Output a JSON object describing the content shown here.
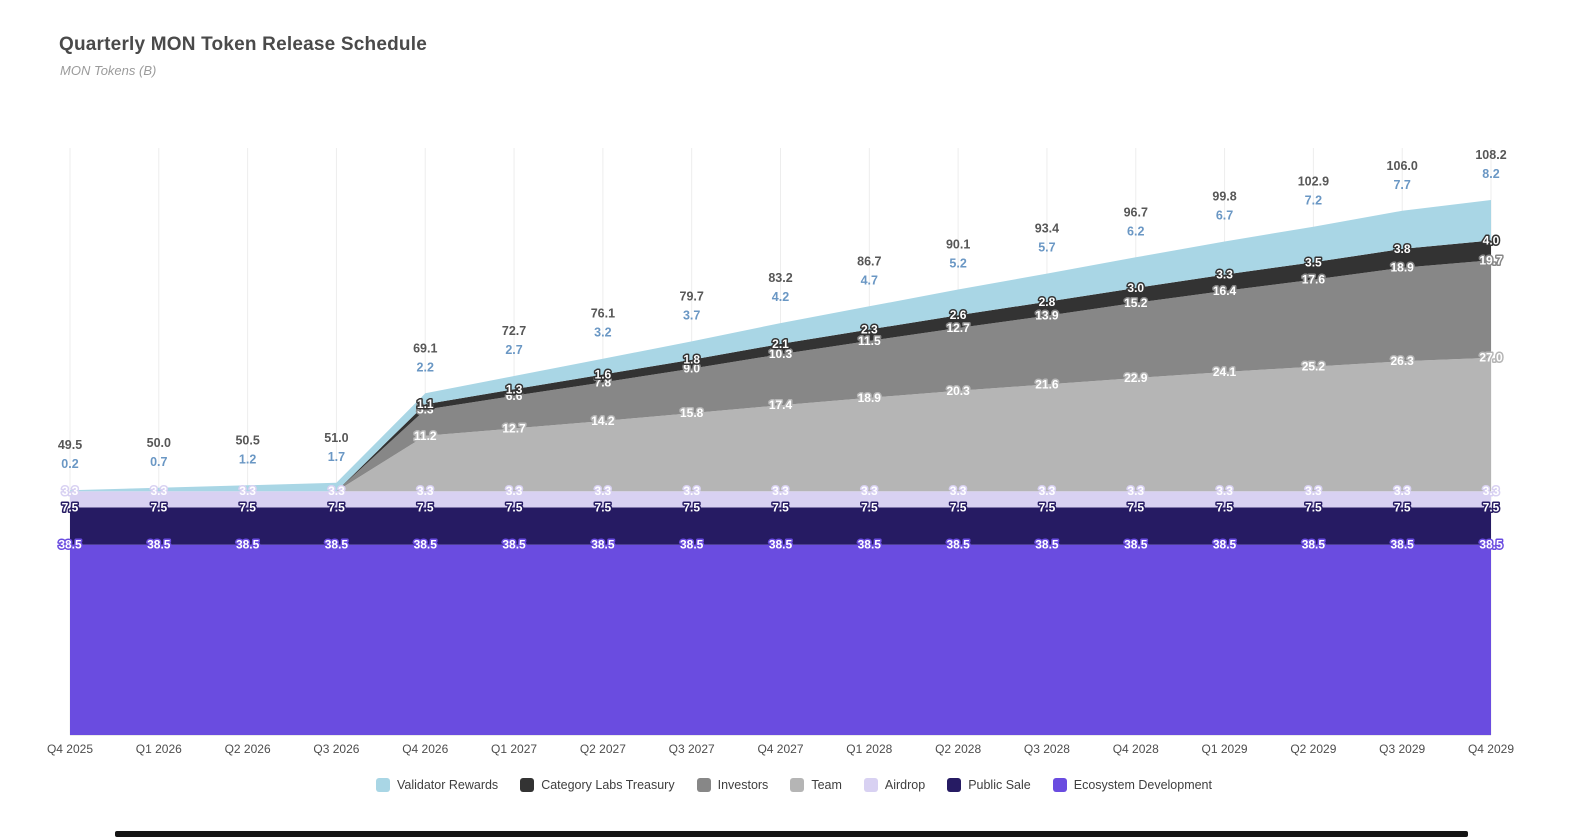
{
  "header": {
    "title": "Quarterly MON Token Release Schedule",
    "subtitle": "MON Tokens (B)"
  },
  "chart_data": {
    "type": "area",
    "stacked": true,
    "grid": true,
    "legend_position": "bottom",
    "ylim": [
      0,
      118
    ],
    "xlabel": "",
    "ylabel": "MON Tokens (B)",
    "categories": [
      "Q4 2025",
      "Q1 2026",
      "Q2 2026",
      "Q3 2026",
      "Q4 2026",
      "Q1 2027",
      "Q2 2027",
      "Q3 2027",
      "Q4 2027",
      "Q1 2028",
      "Q2 2028",
      "Q3 2028",
      "Q4 2028",
      "Q1 2029",
      "Q2 2029",
      "Q3 2029",
      "Q4 2029"
    ],
    "series": [
      {
        "name": "Ecosystem Development",
        "color": "#6a4ce0",
        "values": [
          38.5,
          38.5,
          38.5,
          38.5,
          38.5,
          38.5,
          38.5,
          38.5,
          38.5,
          38.5,
          38.5,
          38.5,
          38.5,
          38.5,
          38.5,
          38.5,
          38.5
        ]
      },
      {
        "name": "Public Sale",
        "color": "#261b63",
        "values": [
          7.5,
          7.5,
          7.5,
          7.5,
          7.5,
          7.5,
          7.5,
          7.5,
          7.5,
          7.5,
          7.5,
          7.5,
          7.5,
          7.5,
          7.5,
          7.5,
          7.5
        ]
      },
      {
        "name": "Airdrop",
        "color": "#d8d1f2",
        "values": [
          3.3,
          3.3,
          3.3,
          3.3,
          3.3,
          3.3,
          3.3,
          3.3,
          3.3,
          3.3,
          3.3,
          3.3,
          3.3,
          3.3,
          3.3,
          3.3,
          3.3
        ]
      },
      {
        "name": "Team",
        "color": "#b5b5b5",
        "values": [
          0,
          0,
          0,
          0,
          11.2,
          12.7,
          14.2,
          15.8,
          17.4,
          18.9,
          20.3,
          21.6,
          22.9,
          24.1,
          25.2,
          26.3,
          27.0
        ]
      },
      {
        "name": "Investors",
        "color": "#878787",
        "values": [
          0,
          0,
          0,
          0,
          5.3,
          6.6,
          7.8,
          9.0,
          10.3,
          11.5,
          12.7,
          13.9,
          15.2,
          16.4,
          17.6,
          18.9,
          19.7
        ]
      },
      {
        "name": "Category Labs Treasury",
        "color": "#333333",
        "values": [
          0,
          0,
          0,
          0,
          1.1,
          1.3,
          1.6,
          1.8,
          2.1,
          2.3,
          2.6,
          2.8,
          3.0,
          3.3,
          3.5,
          3.8,
          4.0
        ]
      },
      {
        "name": "Validator Rewards",
        "color": "#a9d6e5",
        "values": [
          0.2,
          0.7,
          1.2,
          1.7,
          2.2,
          2.7,
          3.2,
          3.7,
          4.2,
          4.7,
          5.2,
          5.7,
          6.2,
          6.7,
          7.2,
          7.7,
          8.2
        ]
      }
    ],
    "totals": [
      49.5,
      50.0,
      50.5,
      51.0,
      69.1,
      72.7,
      76.1,
      79.7,
      83.2,
      86.7,
      90.1,
      93.4,
      96.7,
      99.8,
      102.9,
      106.0,
      108.2
    ],
    "legend_order": [
      "Validator Rewards",
      "Category Labs Treasury",
      "Investors",
      "Team",
      "Airdrop",
      "Public Sale",
      "Ecosystem Development"
    ],
    "colors": {
      "total_label": "#575757",
      "top_series_label": "#6a97c4",
      "axis_label": "#4d4d4d",
      "gridline": "#ededed",
      "axis_line": "#d6d6d6"
    }
  }
}
